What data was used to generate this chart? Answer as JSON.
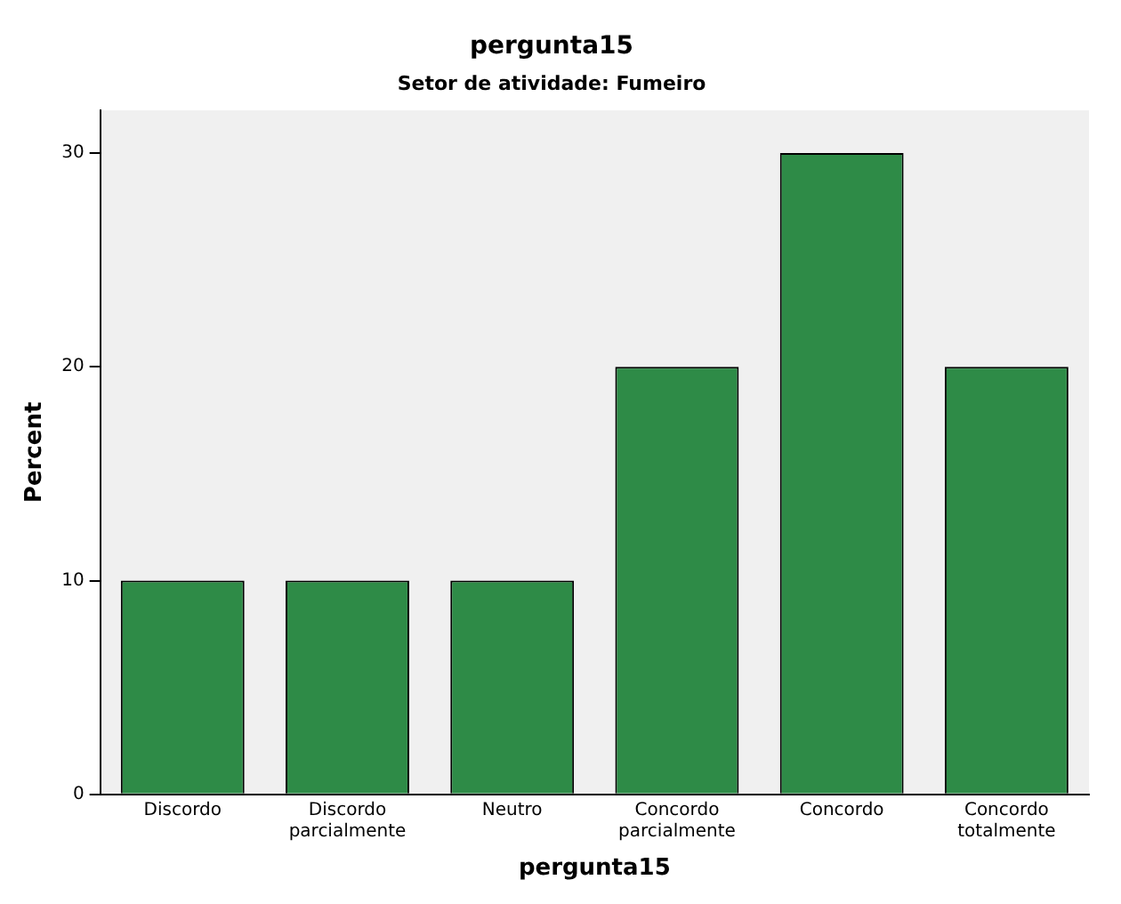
{
  "chart_data": {
    "type": "bar",
    "title": "pergunta15",
    "subtitle": "Setor de atividade: Fumeiro",
    "xlabel": "pergunta15",
    "ylabel": "Percent",
    "categories": [
      "Discordo",
      "Discordo parcialmente",
      "Neutro",
      "Concordo parcialmente",
      "Concordo",
      "Concordo totalmente"
    ],
    "values": [
      10,
      10,
      10,
      20,
      30,
      20
    ],
    "color": "#2e8b47",
    "ylim": [
      0,
      32
    ],
    "yticks": [
      0,
      10,
      20,
      30
    ],
    "grid": false,
    "legend": false
  }
}
